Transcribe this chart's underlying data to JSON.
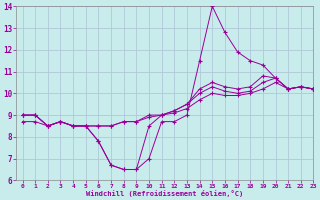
{
  "xlabel": "Windchill (Refroidissement éolien,°C)",
  "background_color": "#c8ecec",
  "grid_color": "#b0c8d8",
  "line_color": "#990099",
  "x": [
    0,
    1,
    2,
    3,
    4,
    5,
    6,
    7,
    8,
    9,
    10,
    11,
    12,
    13,
    14,
    15,
    16,
    17,
    18,
    19,
    20,
    21,
    22,
    23
  ],
  "line1": [
    9.0,
    9.0,
    8.5,
    8.7,
    8.5,
    8.5,
    7.8,
    6.7,
    6.5,
    6.5,
    7.0,
    8.7,
    8.7,
    9.0,
    11.5,
    14.0,
    12.8,
    11.9,
    11.5,
    11.3,
    10.7,
    10.2,
    10.3,
    10.2
  ],
  "line2": [
    9.0,
    9.0,
    8.5,
    8.7,
    8.5,
    8.5,
    7.8,
    6.7,
    6.5,
    6.5,
    8.5,
    9.0,
    9.2,
    9.5,
    10.2,
    10.5,
    10.3,
    10.2,
    10.3,
    10.8,
    10.7,
    10.2,
    10.3,
    10.2
  ],
  "line3": [
    9.0,
    9.0,
    8.5,
    8.7,
    8.5,
    8.5,
    8.5,
    8.5,
    8.7,
    8.7,
    9.0,
    9.0,
    9.2,
    9.5,
    10.0,
    10.3,
    10.1,
    10.0,
    10.1,
    10.5,
    10.7,
    10.2,
    10.3,
    10.2
  ],
  "line4": [
    8.7,
    8.7,
    8.5,
    8.7,
    8.5,
    8.5,
    8.5,
    8.5,
    8.7,
    8.7,
    8.9,
    9.0,
    9.1,
    9.3,
    9.7,
    10.0,
    9.9,
    9.9,
    10.0,
    10.2,
    10.5,
    10.2,
    10.3,
    10.2
  ],
  "ylim": [
    6,
    14
  ],
  "xlim": [
    -0.5,
    23
  ],
  "yticks": [
    6,
    7,
    8,
    9,
    10,
    11,
    12,
    13,
    14
  ],
  "xticks": [
    0,
    1,
    2,
    3,
    4,
    5,
    6,
    7,
    8,
    9,
    10,
    11,
    12,
    13,
    14,
    15,
    16,
    17,
    18,
    19,
    20,
    21,
    22,
    23
  ]
}
